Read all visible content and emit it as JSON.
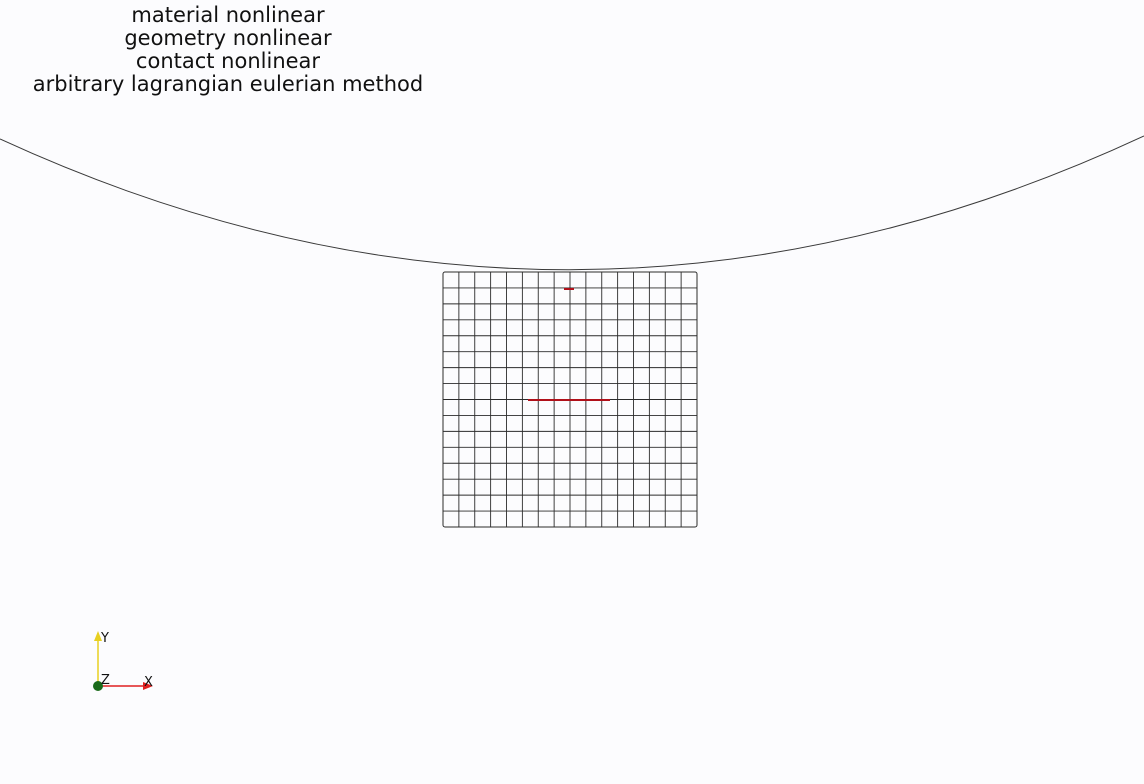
{
  "window": {
    "title_lines": [
      "material nonlinear",
      "geometry nonlinear",
      "contact nonlinear",
      "arbitrary lagrangian eulerian method"
    ]
  },
  "mesh": {
    "divisions_x": 16,
    "divisions_y": 16,
    "line_color": "#2b2b2b"
  },
  "rigid_surface": {
    "line_color": "#3a3a3a"
  },
  "highlights": {
    "color": "#b0101a"
  },
  "orientation_axes": {
    "x_label": "X",
    "y_label": "Y",
    "z_label": "Z",
    "x_color": "#e02020",
    "y_color": "#e8d020",
    "z_color": "#1a6a1a"
  },
  "background_color": "#fcfcfe"
}
